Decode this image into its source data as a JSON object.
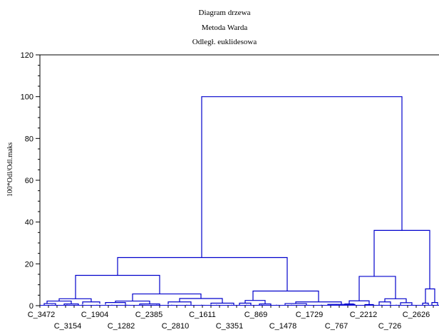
{
  "chart_data": {
    "type": "dendrogram",
    "title_lines": [
      "Diagram drzewa",
      "Metoda Warda",
      "Odległ. euklidesowa"
    ],
    "ylabel": "100*Odl/Odl.maks",
    "ylim": [
      0,
      120
    ],
    "yticks": [
      0,
      20,
      40,
      60,
      80,
      100,
      120
    ],
    "leaf_labels_row1": [
      "C_3472",
      "C_1904",
      "C_2385",
      "C_1611",
      "C_869",
      "C_1729",
      "C_2212",
      "C_2626"
    ],
    "leaf_labels_row2": [
      "C_3154",
      "C_1282",
      "C_2810",
      "C_3351",
      "C_1478",
      "C_767",
      "C_726"
    ],
    "color": "#0000cc"
  }
}
